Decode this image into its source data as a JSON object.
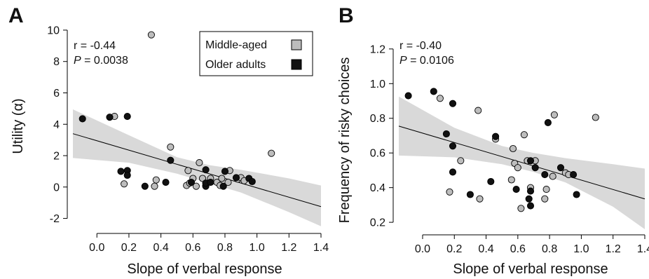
{
  "colors": {
    "middle_aged": "#bdbdbd",
    "older_adults": "#111111",
    "ci_band": "#d9d9d9",
    "fit_line": "#000000"
  },
  "legend": {
    "middle_aged": "Middle-aged",
    "older_adults": "Older adults"
  },
  "chart_data": [
    {
      "type": "scatter",
      "panel": "A",
      "xlabel": "Slope of verbal response",
      "ylabel": "Utility (α)",
      "xlim": [
        -0.15,
        1.4
      ],
      "ylim": [
        -2.6,
        10.4
      ],
      "xticks": [
        "0.0",
        "0.2",
        "0.4",
        "0.6",
        "0.8",
        "1.0",
        "1.2",
        "1.4"
      ],
      "xtick_values": [
        0,
        0.2,
        0.4,
        0.6,
        0.8,
        1.0,
        1.2,
        1.4
      ],
      "yticks": [
        "-2",
        "0",
        "2",
        "4",
        "6",
        "8",
        "10"
      ],
      "ytick_values": [
        -2,
        0,
        2,
        4,
        6,
        8,
        10
      ],
      "stat_r": "r = -0.44",
      "stat_p_label": "P",
      "stat_p_value": " = 0.0038",
      "legend_shown": true,
      "fit": {
        "x": [
          -0.15,
          1.4
        ],
        "y": [
          3.4,
          -1.25
        ]
      },
      "ci_upper": {
        "x": [
          -0.15,
          0.2,
          0.5,
          0.7,
          0.9,
          1.2,
          1.4
        ],
        "y": [
          4.95,
          3.3,
          1.9,
          1.4,
          1.1,
          0.55,
          0.1
        ]
      },
      "ci_lower": {
        "x": [
          -0.15,
          0.2,
          0.5,
          0.7,
          0.9,
          1.2,
          1.4
        ],
        "y": [
          1.85,
          1.55,
          0.85,
          0.25,
          -0.35,
          -1.6,
          -2.5
        ]
      },
      "series": [
        {
          "name": "Middle-aged",
          "points": [
            [
              0.11,
              4.5
            ],
            [
              0.17,
              0.2
            ],
            [
              0.34,
              9.7
            ],
            [
              0.36,
              0.05
            ],
            [
              0.37,
              0.45
            ],
            [
              0.46,
              2.55
            ],
            [
              0.56,
              0.1
            ],
            [
              0.57,
              1.05
            ],
            [
              0.58,
              0.25
            ],
            [
              0.6,
              0.55
            ],
            [
              0.62,
              0.05
            ],
            [
              0.64,
              1.55
            ],
            [
              0.66,
              0.55
            ],
            [
              0.68,
              0.1
            ],
            [
              0.71,
              0.55
            ],
            [
              0.75,
              0.3
            ],
            [
              0.77,
              0.1
            ],
            [
              0.78,
              0.55
            ],
            [
              0.82,
              0.3
            ],
            [
              0.83,
              1.05
            ],
            [
              0.88,
              0.5
            ],
            [
              0.9,
              0.6
            ],
            [
              0.92,
              0.4
            ],
            [
              1.09,
              2.15
            ]
          ]
        },
        {
          "name": "Older adults",
          "points": [
            [
              -0.09,
              4.35
            ],
            [
              0.08,
              4.45
            ],
            [
              0.15,
              1.0
            ],
            [
              0.19,
              1.05
            ],
            [
              0.19,
              4.5
            ],
            [
              0.19,
              0.75
            ],
            [
              0.3,
              0.05
            ],
            [
              0.43,
              0.3
            ],
            [
              0.46,
              1.7
            ],
            [
              0.59,
              0.3
            ],
            [
              0.68,
              0.05
            ],
            [
              0.68,
              1.1
            ],
            [
              0.68,
              0.25
            ],
            [
              0.71,
              0.3
            ],
            [
              0.79,
              0.05
            ],
            [
              0.8,
              1.0
            ],
            [
              0.87,
              0.6
            ],
            [
              0.95,
              0.55
            ],
            [
              0.97,
              0.35
            ]
          ]
        }
      ]
    },
    {
      "type": "scatter",
      "panel": "B",
      "xlabel": "Slope of verbal response",
      "ylabel": "Frequency of risky choices",
      "xlim": [
        -0.15,
        1.4
      ],
      "ylim": [
        0.16,
        1.26
      ],
      "xticks": [
        "0.0",
        "0.2",
        "0.4",
        "0.6",
        "0.8",
        "1.0",
        "1.2",
        "1.4"
      ],
      "xtick_values": [
        0,
        0.2,
        0.4,
        0.6,
        0.8,
        1.0,
        1.2,
        1.4
      ],
      "yticks": [
        "0.2",
        "0.4",
        "0.6",
        "0.8",
        "1.0",
        "1.2"
      ],
      "ytick_values": [
        0.2,
        0.4,
        0.6,
        0.8,
        1.0,
        1.2
      ],
      "stat_r": "r = -0.40",
      "stat_p_label": "P",
      "stat_p_value": " = 0.0106",
      "legend_shown": false,
      "fit": {
        "x": [
          -0.15,
          1.4
        ],
        "y": [
          0.755,
          0.335
        ]
      },
      "ci_upper": {
        "x": [
          -0.15,
          0.2,
          0.5,
          0.7,
          0.9,
          1.2,
          1.4
        ],
        "y": [
          0.925,
          0.745,
          0.64,
          0.6,
          0.57,
          0.535,
          0.51
        ]
      },
      "ci_lower": {
        "x": [
          -0.15,
          0.2,
          0.5,
          0.7,
          0.9,
          1.2,
          1.4
        ],
        "y": [
          0.585,
          0.575,
          0.535,
          0.49,
          0.43,
          0.29,
          0.16
        ]
      },
      "series": [
        {
          "name": "Middle-aged",
          "points": [
            [
              0.11,
              0.915
            ],
            [
              0.17,
              0.375
            ],
            [
              0.24,
              0.555
            ],
            [
              0.35,
              0.845
            ],
            [
              0.36,
              0.335
            ],
            [
              0.46,
              0.68
            ],
            [
              0.56,
              0.445
            ],
            [
              0.57,
              0.625
            ],
            [
              0.58,
              0.54
            ],
            [
              0.6,
              0.515
            ],
            [
              0.62,
              0.28
            ],
            [
              0.64,
              0.705
            ],
            [
              0.66,
              0.555
            ],
            [
              0.68,
              0.4
            ],
            [
              0.71,
              0.555
            ],
            [
              0.77,
              0.335
            ],
            [
              0.78,
              0.39
            ],
            [
              0.82,
              0.465
            ],
            [
              0.83,
              0.82
            ],
            [
              0.9,
              0.485
            ],
            [
              0.92,
              0.475
            ],
            [
              1.09,
              0.805
            ]
          ]
        },
        {
          "name": "Older adults",
          "points": [
            [
              -0.09,
              0.93
            ],
            [
              0.07,
              0.955
            ],
            [
              0.15,
              0.71
            ],
            [
              0.19,
              0.885
            ],
            [
              0.19,
              0.64
            ],
            [
              0.19,
              0.49
            ],
            [
              0.3,
              0.36
            ],
            [
              0.43,
              0.435
            ],
            [
              0.46,
              0.695
            ],
            [
              0.59,
              0.39
            ],
            [
              0.67,
              0.335
            ],
            [
              0.68,
              0.38
            ],
            [
              0.68,
              0.295
            ],
            [
              0.68,
              0.555
            ],
            [
              0.71,
              0.515
            ],
            [
              0.77,
              0.475
            ],
            [
              0.79,
              0.775
            ],
            [
              0.87,
              0.515
            ],
            [
              0.95,
              0.475
            ],
            [
              0.97,
              0.36
            ]
          ]
        }
      ]
    }
  ]
}
